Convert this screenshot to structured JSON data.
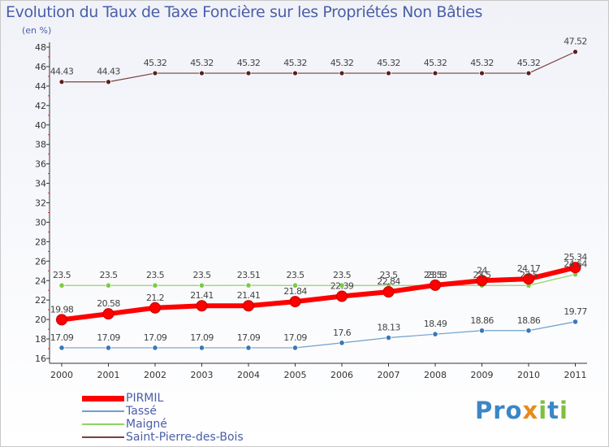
{
  "title": "Evolution du Taux de Taxe Foncière sur les Propriétés Non Bâties",
  "unit_label": "(en %)",
  "logo": {
    "p1": "Pro",
    "x": "x",
    "i": "i",
    "t": "t",
    "i2": "i"
  },
  "chart_data": {
    "type": "line",
    "title": "Evolution du Taux de Taxe Foncière sur les Propriétés Non Bâties",
    "ylabel": "(en %)",
    "ylim": [
      16,
      48
    ],
    "yticks": [
      16,
      18,
      20,
      22,
      24,
      26,
      28,
      30,
      32,
      34,
      36,
      38,
      40,
      42,
      44,
      46,
      48
    ],
    "grid": false,
    "legend_position": "bottom-left",
    "categories": [
      "2000",
      "2001",
      "2002",
      "2003",
      "2004",
      "2005",
      "2006",
      "2007",
      "2008",
      "2009",
      "2010",
      "2011"
    ],
    "series": [
      {
        "name": "PIRMIL",
        "color": "#ff0000",
        "values": [
          19.98,
          20.58,
          21.2,
          21.41,
          21.41,
          21.84,
          22.39,
          22.84,
          23.53,
          24,
          24.17,
          25.34
        ],
        "labels": [
          "19.98",
          "20.58",
          "21.2",
          "21.41",
          "21.41",
          "21.84",
          "22.39",
          "22.84",
          "23.53",
          "24",
          "24.17",
          "25.34"
        ]
      },
      {
        "name": "Tassé",
        "color": "#6f9fce",
        "values": [
          17.09,
          17.09,
          17.09,
          17.09,
          17.09,
          17.09,
          17.6,
          18.13,
          18.49,
          18.86,
          18.86,
          19.77
        ],
        "labels": [
          "17.09",
          "17.09",
          "17.09",
          "17.09",
          "17.09",
          "17.09",
          "17.6",
          "18.13",
          "18.49",
          "18.86",
          "18.86",
          "19.77"
        ]
      },
      {
        "name": "Maigné",
        "color": "#8ed462",
        "values": [
          23.5,
          23.5,
          23.5,
          23.5,
          23.51,
          23.5,
          23.5,
          23.5,
          23.5,
          23.5,
          23.5,
          24.64
        ],
        "labels": [
          "23.5",
          "23.5",
          "23.5",
          "23.5",
          "23.51",
          "23.5",
          "23.5",
          "23.5",
          "23.5",
          "23.5",
          "23.5",
          "24.64"
        ]
      },
      {
        "name": "Saint-Pierre-des-Bois",
        "color": "#7b3f3f",
        "values": [
          44.43,
          44.43,
          45.32,
          45.32,
          45.32,
          45.32,
          45.32,
          45.32,
          45.32,
          45.32,
          45.32,
          47.52
        ],
        "labels": [
          "44.43",
          "44.43",
          "45.32",
          "45.32",
          "45.32",
          "45.32",
          "45.32",
          "45.32",
          "45.32",
          "45.32",
          "45.32",
          "47.52"
        ]
      }
    ]
  }
}
